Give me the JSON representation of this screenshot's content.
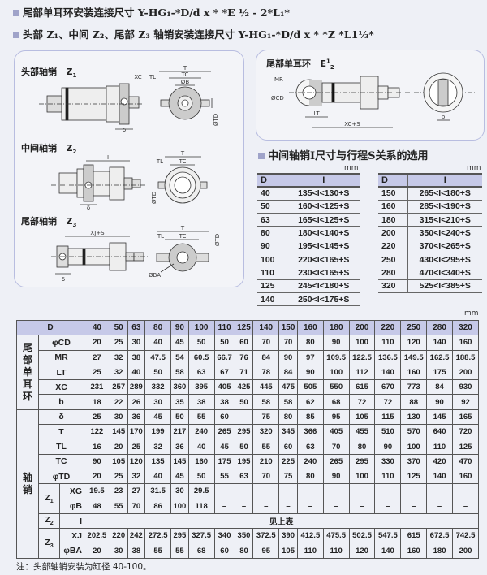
{
  "headings": [
    {
      "text": "尾部单耳环安装连接尺寸 Y-HG₁-*D/d x * *E ½ - 2*L₁*"
    },
    {
      "text": "头部 Z₁、中间 Z₂、尾部 Z₃ 轴销安装连接尺寸 Y-HG₁-*D/d x * *Z *L1⅓*"
    }
  ],
  "left_panel": {
    "z1": {
      "title": "头部轴销",
      "code": "Z",
      "sub": "1",
      "dims": [
        "XC",
        "TL",
        "T",
        "TC",
        "ØB",
        "δ",
        "ØTD"
      ]
    },
    "z2": {
      "title": "中间轴销",
      "code": "Z",
      "sub": "2",
      "dims": [
        "I",
        "T",
        "TL",
        "TC",
        "ØTD",
        "δ"
      ]
    },
    "z3": {
      "title": "尾部轴销",
      "code": "Z",
      "sub": "3",
      "dims": [
        "XJ+S",
        "T",
        "TL",
        "TC",
        "ØTD",
        "ØBA",
        "δ"
      ]
    }
  },
  "right_panel": {
    "title": "尾部单耳环",
    "code": "E",
    "sup": "1",
    "sub": "2",
    "dims": [
      "MR",
      "ØCD",
      "LT",
      "XC+S",
      "b"
    ]
  },
  "selection": {
    "title": "中间轴销I尺寸与行程S关系的选用",
    "unit": "mm",
    "header": [
      "D",
      "I"
    ],
    "left": [
      [
        "40",
        "135<I<130+S"
      ],
      [
        "50",
        "160<I<125+S"
      ],
      [
        "63",
        "165<I<125+S"
      ],
      [
        "80",
        "180<I<140+S"
      ],
      [
        "90",
        "195<I<145+S"
      ],
      [
        "100",
        "220<I<165+S"
      ],
      [
        "110",
        "230<I<165+S"
      ],
      [
        "125",
        "245<I<180+S"
      ],
      [
        "140",
        "250<I<175+S"
      ]
    ],
    "right": [
      [
        "150",
        "265<I<180+S"
      ],
      [
        "160",
        "285<I<190+S"
      ],
      [
        "180",
        "315<I<210+S"
      ],
      [
        "200",
        "350<I<240+S"
      ],
      [
        "220",
        "370<I<265+S"
      ],
      [
        "250",
        "430<I<295+S"
      ],
      [
        "280",
        "470<I<340+S"
      ],
      [
        "320",
        "525<I<385+S"
      ]
    ]
  },
  "main_table": {
    "unit": "mm",
    "d_label": "D",
    "columns": [
      "40",
      "50",
      "63",
      "80",
      "90",
      "100",
      "110",
      "125",
      "140",
      "150",
      "160",
      "180",
      "200",
      "220",
      "250",
      "280",
      "320"
    ],
    "groups": {
      "ear": "尾部单耳环",
      "pin": "轴销",
      "z1": "Z1",
      "z2": "Z2",
      "z3": "Z3"
    },
    "rows": [
      {
        "label": "φCD",
        "values": [
          "20",
          "25",
          "30",
          "40",
          "45",
          "50",
          "50",
          "60",
          "70",
          "70",
          "80",
          "90",
          "100",
          "110",
          "120",
          "140",
          "160"
        ]
      },
      {
        "label": "MR",
        "values": [
          "27",
          "32",
          "38",
          "47.5",
          "54",
          "60.5",
          "66.7",
          "76",
          "84",
          "90",
          "97",
          "109.5",
          "122.5",
          "136.5",
          "149.5",
          "162.5",
          "188.5"
        ]
      },
      {
        "label": "LT",
        "values": [
          "25",
          "32",
          "40",
          "50",
          "58",
          "63",
          "67",
          "71",
          "78",
          "84",
          "90",
          "100",
          "112",
          "140",
          "160",
          "175",
          "200"
        ]
      },
      {
        "label": "XC",
        "values": [
          "231",
          "257",
          "289",
          "332",
          "360",
          "395",
          "405",
          "425",
          "445",
          "475",
          "505",
          "550",
          "615",
          "670",
          "773",
          "84",
          "930"
        ]
      },
      {
        "label": "b",
        "values": [
          "18",
          "22",
          "26",
          "30",
          "35",
          "38",
          "38",
          "50",
          "58",
          "58",
          "62",
          "68",
          "72",
          "72",
          "88",
          "90",
          "92"
        ]
      },
      {
        "label": "δ",
        "values": [
          "25",
          "30",
          "36",
          "45",
          "50",
          "55",
          "60",
          "–",
          "75",
          "80",
          "85",
          "95",
          "105",
          "115",
          "130",
          "145",
          "165"
        ]
      },
      {
        "label": "T",
        "values": [
          "122",
          "145",
          "170",
          "199",
          "217",
          "240",
          "265",
          "295",
          "320",
          "345",
          "366",
          "405",
          "455",
          "510",
          "570",
          "640",
          "720"
        ]
      },
      {
        "label": "TL",
        "values": [
          "16",
          "20",
          "25",
          "32",
          "36",
          "40",
          "45",
          "50",
          "55",
          "60",
          "63",
          "70",
          "80",
          "90",
          "100",
          "110",
          "125"
        ]
      },
      {
        "label": "TC",
        "values": [
          "90",
          "105",
          "120",
          "135",
          "145",
          "160",
          "175",
          "195",
          "210",
          "225",
          "240",
          "265",
          "295",
          "330",
          "370",
          "420",
          "470"
        ]
      },
      {
        "label": "φTD",
        "values": [
          "20",
          "25",
          "32",
          "40",
          "45",
          "50",
          "55",
          "63",
          "70",
          "75",
          "80",
          "90",
          "100",
          "110",
          "125",
          "140",
          "160"
        ]
      },
      {
        "label": "XG",
        "values": [
          "19.5",
          "23",
          "27",
          "31.5",
          "30",
          "29.5",
          "–",
          "–",
          "–",
          "–",
          "–",
          "–",
          "–",
          "–",
          "–",
          "–",
          "–"
        ]
      },
      {
        "label": "φB",
        "values": [
          "48",
          "55",
          "70",
          "86",
          "100",
          "118",
          "–",
          "–",
          "–",
          "–",
          "–",
          "–",
          "–",
          "–",
          "–",
          "–",
          "–"
        ]
      },
      {
        "label": "I",
        "merged": "见上表"
      },
      {
        "label": "XJ",
        "values": [
          "202.5",
          "220",
          "242",
          "272.5",
          "295",
          "327.5",
          "340",
          "350",
          "372.5",
          "390",
          "412.5",
          "475.5",
          "502.5",
          "547.5",
          "615",
          "672.5",
          "742.5"
        ]
      },
      {
        "label": "φBA",
        "values": [
          "20",
          "30",
          "38",
          "55",
          "55",
          "68",
          "60",
          "80",
          "95",
          "105",
          "110",
          "110",
          "120",
          "140",
          "160",
          "180",
          "200"
        ]
      }
    ]
  },
  "note": "注：头部轴销安装为缸径 40-100。"
}
